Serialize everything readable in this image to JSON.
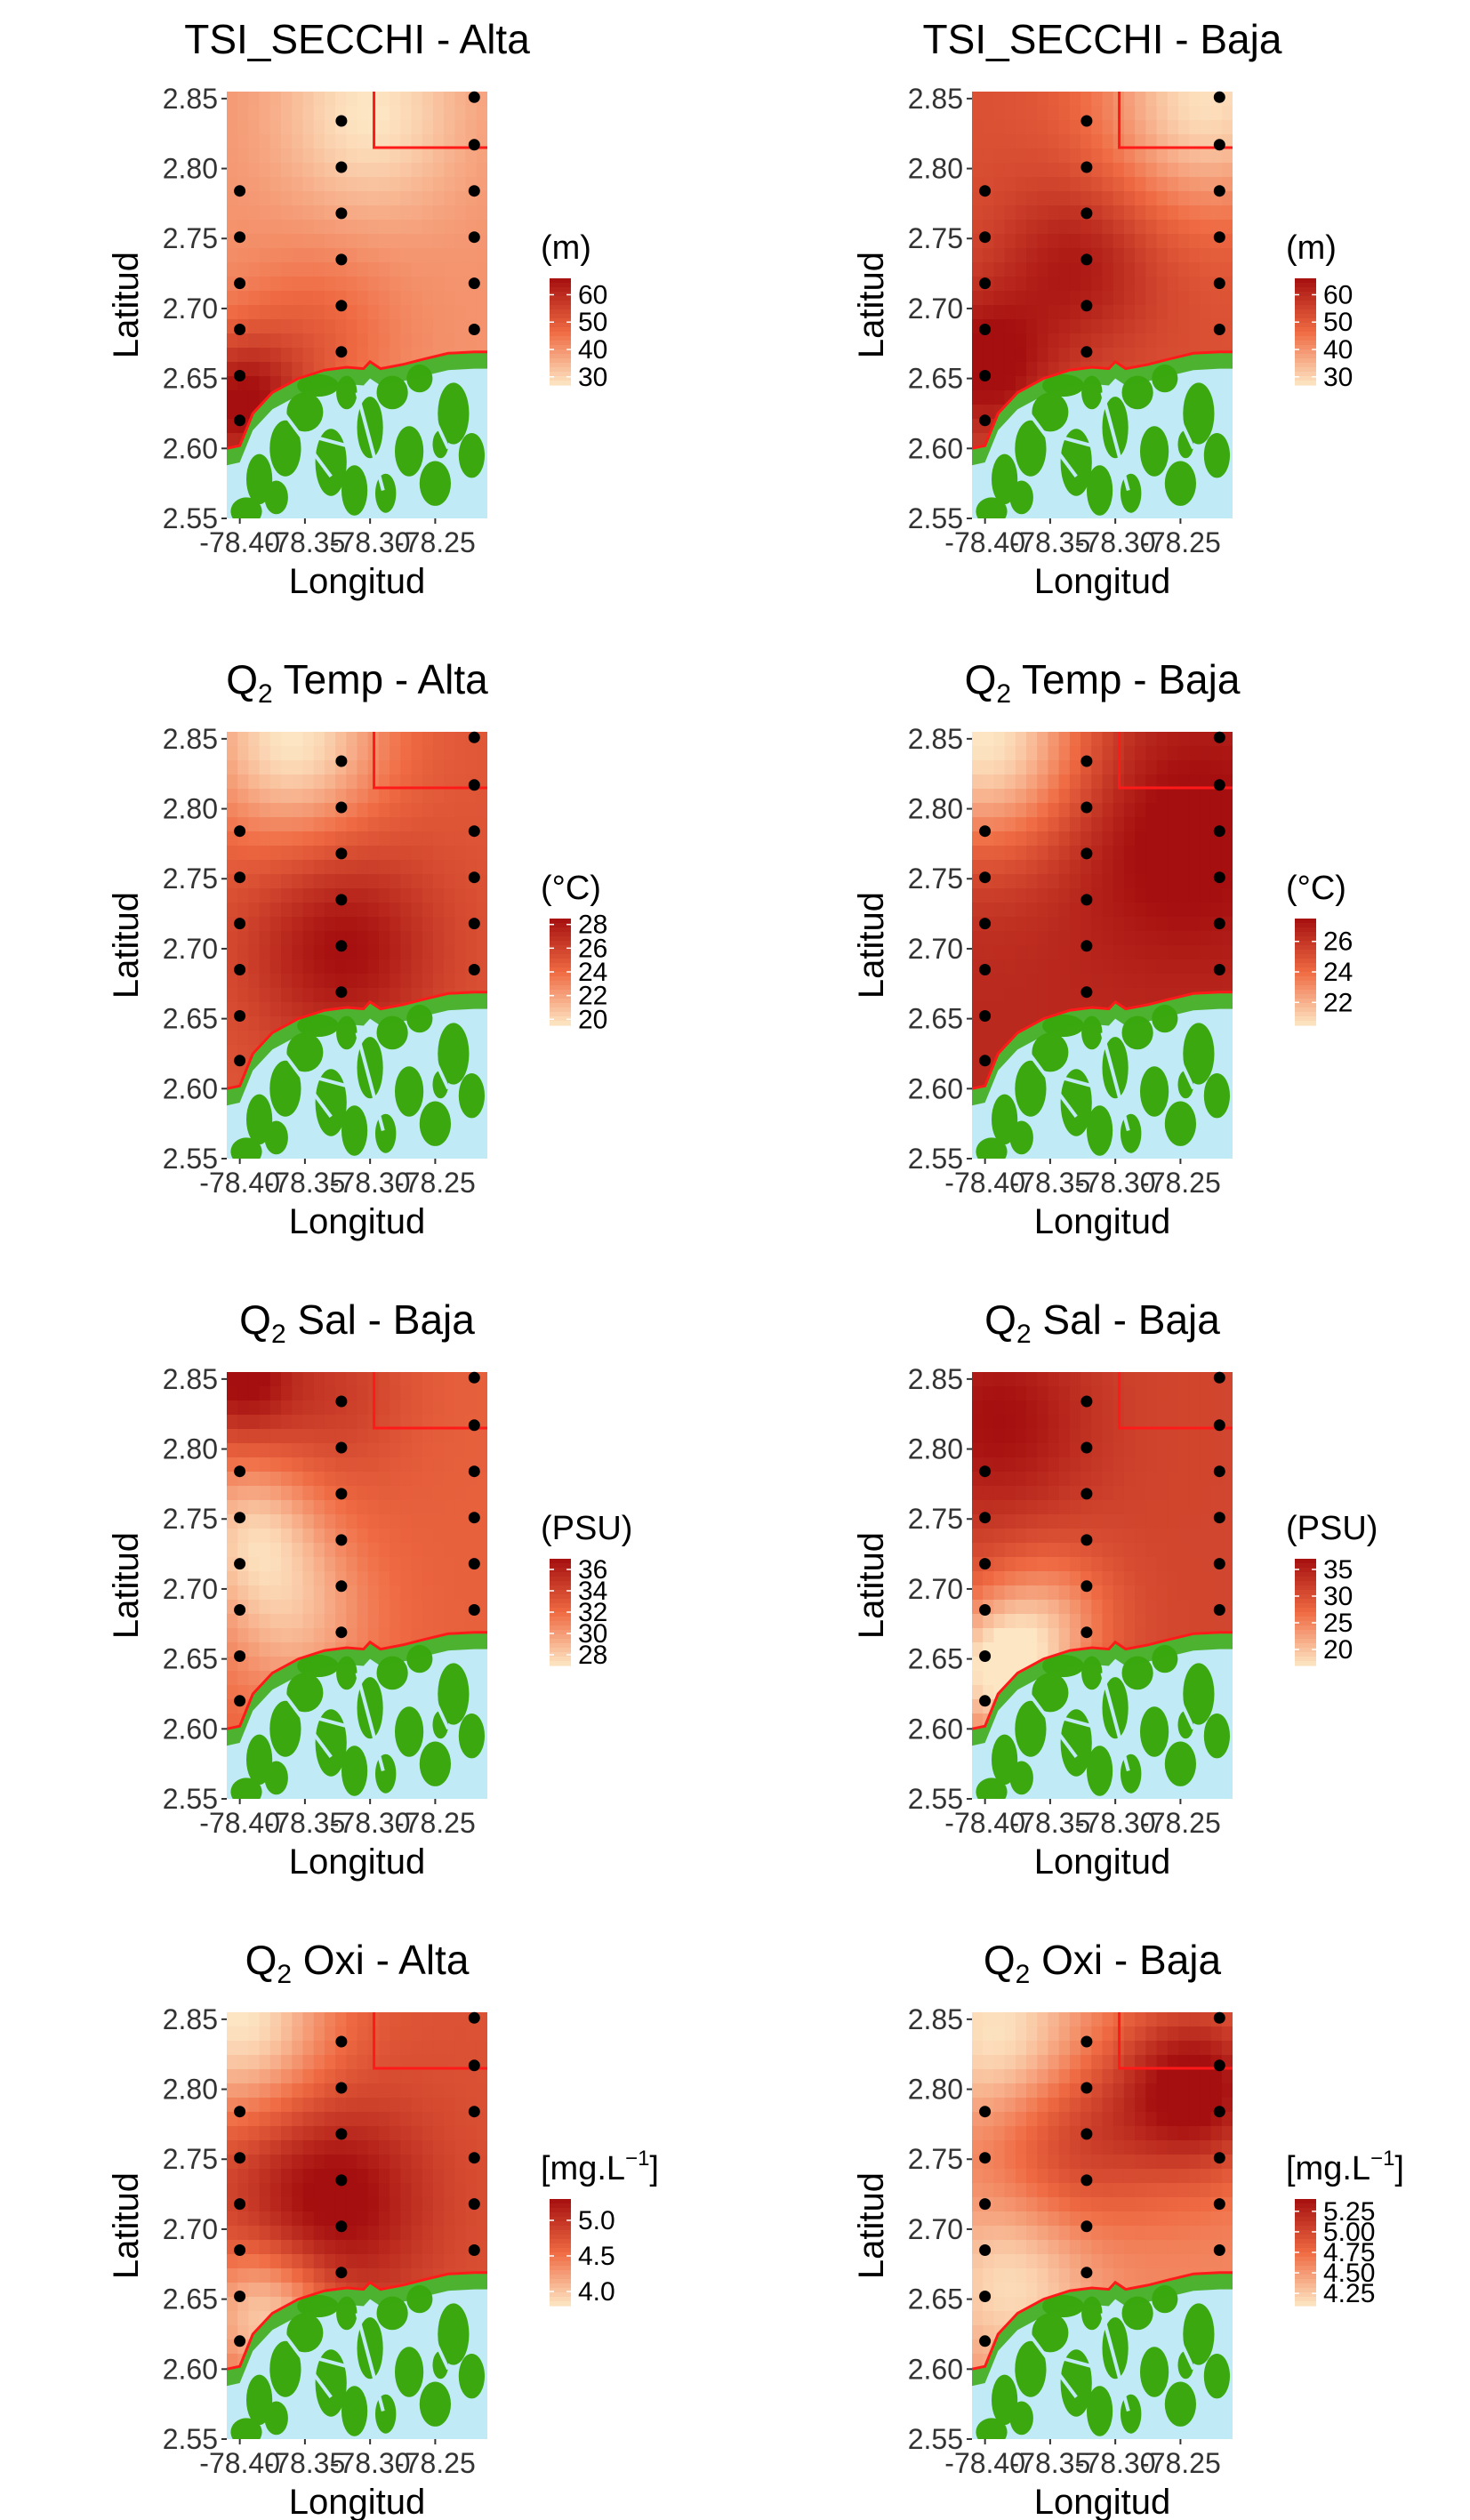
{
  "colors": {
    "low": "#fde6c4",
    "mid": "#ef6a42",
    "high": "#a50f0f",
    "water": "#bfeaf6",
    "land": "#3aa80e",
    "boundary": "#ff1a1a",
    "station": "#000000"
  },
  "chart_data": [
    {
      "type": "heatmap",
      "title": "TSI_SECCHI - Alta",
      "xlabel": "Longitud",
      "ylabel": "Latitud",
      "xlim": [
        -78.41,
        -78.21
      ],
      "ylim": [
        2.55,
        2.855
      ],
      "x_ticks": [
        "-78.40",
        "-78.35",
        "-78.30",
        "-78.25"
      ],
      "y_ticks": [
        "2.55",
        "2.60",
        "2.65",
        "2.70",
        "2.75",
        "2.80",
        "2.85"
      ],
      "legend": {
        "title": "(m)",
        "labels": [
          "60",
          "50",
          "40",
          "30"
        ],
        "range": [
          27,
          66
        ]
      },
      "field": {
        "base": 40,
        "hot": [
          {
            "x": -78.4,
            "y": 2.63,
            "v": 66,
            "r": 0.05
          },
          {
            "x": -78.34,
            "y": 2.68,
            "v": 48,
            "r": 0.06
          }
        ],
        "cold": [
          {
            "x": -78.3,
            "y": 2.84,
            "v": 27,
            "r": 0.07
          }
        ]
      }
    },
    {
      "type": "heatmap",
      "title": "TSI_SECCHI - Baja",
      "xlabel": "Longitud",
      "ylabel": "Latitud",
      "xlim": [
        -78.41,
        -78.21
      ],
      "ylim": [
        2.55,
        2.855
      ],
      "x_ticks": [
        "-78.40",
        "-78.35",
        "-78.30",
        "-78.25"
      ],
      "y_ticks": [
        "2.55",
        "2.60",
        "2.65",
        "2.70",
        "2.75",
        "2.80",
        "2.85"
      ],
      "legend": {
        "title": "(m)",
        "labels": [
          "60",
          "50",
          "40",
          "30"
        ],
        "range": [
          27,
          66
        ]
      },
      "field": {
        "base": 52,
        "hot": [
          {
            "x": -78.4,
            "y": 2.66,
            "v": 68,
            "r": 0.05
          },
          {
            "x": -78.33,
            "y": 2.73,
            "v": 64,
            "r": 0.06
          }
        ],
        "cold": [
          {
            "x": -78.23,
            "y": 2.85,
            "v": 28,
            "r": 0.08
          }
        ]
      }
    },
    {
      "type": "heatmap",
      "title": "Q",
      "title_sub": "2",
      "title_rest": " Temp - Alta",
      "xlabel": "Longitud",
      "ylabel": "Latitud",
      "xlim": [
        -78.41,
        -78.21
      ],
      "ylim": [
        2.55,
        2.855
      ],
      "x_ticks": [
        "-78.40",
        "-78.35",
        "-78.30",
        "-78.25"
      ],
      "y_ticks": [
        "2.55",
        "2.60",
        "2.65",
        "2.70",
        "2.75",
        "2.80",
        "2.85"
      ],
      "legend": {
        "title": "(°C)",
        "labels": [
          "28",
          "26",
          "24",
          "22",
          "20"
        ],
        "range": [
          19.5,
          28.5
        ]
      },
      "field": {
        "base": 25,
        "hot": [
          {
            "x": -78.32,
            "y": 2.7,
            "v": 28.5,
            "r": 0.07
          }
        ],
        "cold": [
          {
            "x": -78.36,
            "y": 2.85,
            "v": 19.5,
            "r": 0.07
          }
        ]
      }
    },
    {
      "type": "heatmap",
      "title": "Q",
      "title_sub": "2",
      "title_rest": " Temp - Baja",
      "xlabel": "Longitud",
      "ylabel": "Latitud",
      "xlim": [
        -78.41,
        -78.21
      ],
      "ylim": [
        2.55,
        2.855
      ],
      "x_ticks": [
        "-78.40",
        "-78.35",
        "-78.30",
        "-78.25"
      ],
      "y_ticks": [
        "2.55",
        "2.60",
        "2.65",
        "2.70",
        "2.75",
        "2.80",
        "2.85"
      ],
      "legend": {
        "title": "(°C)",
        "labels": [
          "26",
          "24",
          "22"
        ],
        "range": [
          20.5,
          27.5
        ]
      },
      "field": {
        "base": 26.5,
        "hot": [
          {
            "x": -78.25,
            "y": 2.78,
            "v": 28,
            "r": 0.08
          }
        ],
        "cold": [
          {
            "x": -78.4,
            "y": 2.85,
            "v": 20.5,
            "r": 0.08
          }
        ]
      }
    },
    {
      "type": "heatmap",
      "title": "Q",
      "title_sub": "2",
      "title_rest": " Sal - Baja",
      "xlabel": "Longitud",
      "ylabel": "Latitud",
      "xlim": [
        -78.41,
        -78.21
      ],
      "ylim": [
        2.55,
        2.855
      ],
      "x_ticks": [
        "-78.40",
        "-78.35",
        "-78.30",
        "-78.25"
      ],
      "y_ticks": [
        "2.55",
        "2.60",
        "2.65",
        "2.70",
        "2.75",
        "2.80",
        "2.85"
      ],
      "legend": {
        "title": "(PSU)",
        "labels": [
          "36",
          "34",
          "32",
          "30",
          "28"
        ],
        "range": [
          27,
          37
        ]
      },
      "field": {
        "base": 32.5,
        "hot": [
          {
            "x": -78.4,
            "y": 2.85,
            "v": 37,
            "r": 0.04
          },
          {
            "x": -78.33,
            "y": 2.84,
            "v": 34.5,
            "r": 0.06
          }
        ],
        "cold": [
          {
            "x": -78.39,
            "y": 2.74,
            "v": 28.5,
            "r": 0.05
          },
          {
            "x": -78.36,
            "y": 2.68,
            "v": 29,
            "r": 0.06
          }
        ]
      }
    },
    {
      "type": "heatmap",
      "title": "Q",
      "title_sub": "2",
      "title_rest": " Sal - Baja",
      "xlabel": "Longitud",
      "ylabel": "Latitud",
      "xlim": [
        -78.41,
        -78.21
      ],
      "ylim": [
        2.55,
        2.855
      ],
      "x_ticks": [
        "-78.40",
        "-78.35",
        "-78.30",
        "-78.25"
      ],
      "y_ticks": [
        "2.55",
        "2.60",
        "2.65",
        "2.70",
        "2.75",
        "2.80",
        "2.85"
      ],
      "legend": {
        "title": "(PSU)",
        "labels": [
          "35",
          "30",
          "25",
          "20"
        ],
        "range": [
          17,
          37
        ]
      },
      "field": {
        "base": 31,
        "hot": [
          {
            "x": -78.39,
            "y": 2.82,
            "v": 37,
            "r": 0.07
          }
        ],
        "cold": [
          {
            "x": -78.39,
            "y": 2.64,
            "v": 17,
            "r": 0.05
          },
          {
            "x": -78.35,
            "y": 2.68,
            "v": 24,
            "r": 0.05
          }
        ]
      }
    },
    {
      "type": "heatmap",
      "title": "Q",
      "title_sub": "2",
      "title_rest": " Oxi - Alta",
      "xlabel": "Longitud",
      "ylabel": "Latitud",
      "xlim": [
        -78.41,
        -78.21
      ],
      "ylim": [
        2.55,
        2.855
      ],
      "x_ticks": [
        "-78.40",
        "-78.35",
        "-78.30",
        "-78.25"
      ],
      "y_ticks": [
        "2.55",
        "2.60",
        "2.65",
        "2.70",
        "2.75",
        "2.80",
        "2.85"
      ],
      "legend": {
        "title": "[mg.L",
        "title_sup": "−1",
        "title_end": "]",
        "labels": [
          "5.0",
          "4.5",
          "4.0"
        ],
        "range": [
          3.8,
          5.3
        ]
      },
      "field": {
        "base": 4.75,
        "hot": [
          {
            "x": -78.33,
            "y": 2.72,
            "v": 5.4,
            "r": 0.07
          }
        ],
        "cold": [
          {
            "x": -78.4,
            "y": 2.85,
            "v": 3.8,
            "r": 0.07
          },
          {
            "x": -78.38,
            "y": 2.64,
            "v": 3.9,
            "r": 0.05
          }
        ]
      }
    },
    {
      "type": "heatmap",
      "title": "Q",
      "title_sub": "2",
      "title_rest": " Oxi - Baja",
      "xlabel": "Longitud",
      "ylabel": "Latitud",
      "xlim": [
        -78.41,
        -78.21
      ],
      "ylim": [
        2.55,
        2.855
      ],
      "x_ticks": [
        "-78.40",
        "-78.35",
        "-78.30",
        "-78.25"
      ],
      "y_ticks": [
        "2.55",
        "2.60",
        "2.65",
        "2.70",
        "2.75",
        "2.80",
        "2.85"
      ],
      "legend": {
        "title": "[mg.L",
        "title_sup": "−1",
        "title_end": "]",
        "labels": [
          "5.25",
          "5.00",
          "4.75",
          "4.50",
          "4.25"
        ],
        "range": [
          4.1,
          5.4
        ]
      },
      "field": {
        "base": 4.6,
        "hot": [
          {
            "x": -78.24,
            "y": 2.8,
            "v": 5.5,
            "r": 0.06
          },
          {
            "x": -78.33,
            "y": 2.76,
            "v": 5.0,
            "r": 0.06
          }
        ],
        "cold": [
          {
            "x": -78.39,
            "y": 2.84,
            "v": 4.1,
            "r": 0.06
          },
          {
            "x": -78.38,
            "y": 2.66,
            "v": 4.15,
            "r": 0.06
          }
        ]
      }
    }
  ]
}
